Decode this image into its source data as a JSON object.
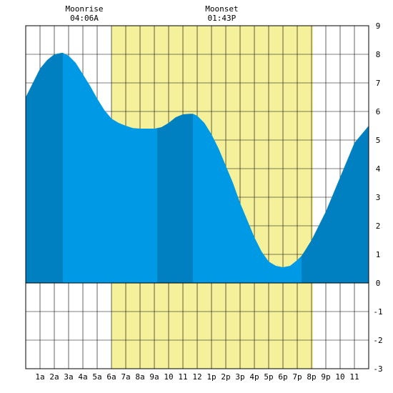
{
  "chart_data": {
    "type": "area",
    "title": "",
    "xlabel": "",
    "ylabel": "",
    "xlim": [
      0,
      24
    ],
    "ylim": [
      -3,
      9
    ],
    "x_tick_labels": [
      "1a",
      "2a",
      "3a",
      "4a",
      "5a",
      "6a",
      "7a",
      "8a",
      "9a",
      "10",
      "11",
      "12",
      "1p",
      "2p",
      "3p",
      "4p",
      "5p",
      "6p",
      "7p",
      "8p",
      "9p",
      "10",
      "11"
    ],
    "y_tick_labels": [
      "9",
      "8",
      "7",
      "6",
      "5",
      "4",
      "3",
      "2",
      "1",
      "0",
      "-1",
      "-2",
      "-3"
    ],
    "grid": true,
    "moon_window": {
      "start_hour": 6.0,
      "end_hour": 20.1,
      "color": "#f5f09a"
    },
    "annotations": [
      {
        "label": "Moonrise",
        "time": "04:06A",
        "hour": 4.1
      },
      {
        "label": "Moonset",
        "time": "01:43P",
        "hour": 13.72
      }
    ],
    "series": [
      {
        "x": [
          0,
          0.5,
          1,
          1.5,
          2,
          2.5,
          2.6,
          3,
          3.5,
          4,
          4.5,
          5,
          5.5,
          6,
          6.5,
          7,
          7.5,
          8,
          8.5,
          9,
          9.5,
          10,
          10.5,
          11,
          11.5,
          11.7,
          12,
          12.5,
          13,
          13.5,
          14,
          14.5,
          15,
          15.5,
          16,
          16.5,
          17,
          17.5,
          18,
          18.5,
          19,
          19.3,
          19.5,
          20,
          20.5,
          21,
          21.5,
          22,
          22.5,
          23,
          23.5,
          24
        ],
        "y": [
          6.5,
          7.0,
          7.5,
          7.8,
          8.0,
          8.05,
          8.05,
          7.95,
          7.7,
          7.3,
          6.9,
          6.45,
          6.05,
          5.75,
          5.6,
          5.5,
          5.42,
          5.4,
          5.4,
          5.4,
          5.45,
          5.6,
          5.8,
          5.9,
          5.92,
          5.92,
          5.85,
          5.6,
          5.2,
          4.7,
          4.1,
          3.5,
          2.8,
          2.2,
          1.6,
          1.1,
          0.75,
          0.6,
          0.55,
          0.6,
          0.8,
          0.95,
          1.1,
          1.5,
          2.0,
          2.5,
          3.1,
          3.7,
          4.3,
          4.9,
          5.2,
          5.5
        ]
      }
    ],
    "shading": {
      "colors": {
        "dark": "#0080c0",
        "light": "#0099e6"
      },
      "segments": [
        {
          "from": 0,
          "to": 2.6,
          "shade": "dark"
        },
        {
          "from": 2.6,
          "to": 9.2,
          "shade": "light"
        },
        {
          "from": 9.2,
          "to": 11.7,
          "shade": "dark"
        },
        {
          "from": 11.7,
          "to": 19.3,
          "shade": "light"
        },
        {
          "from": 19.3,
          "to": 24,
          "shade": "dark"
        }
      ]
    }
  }
}
